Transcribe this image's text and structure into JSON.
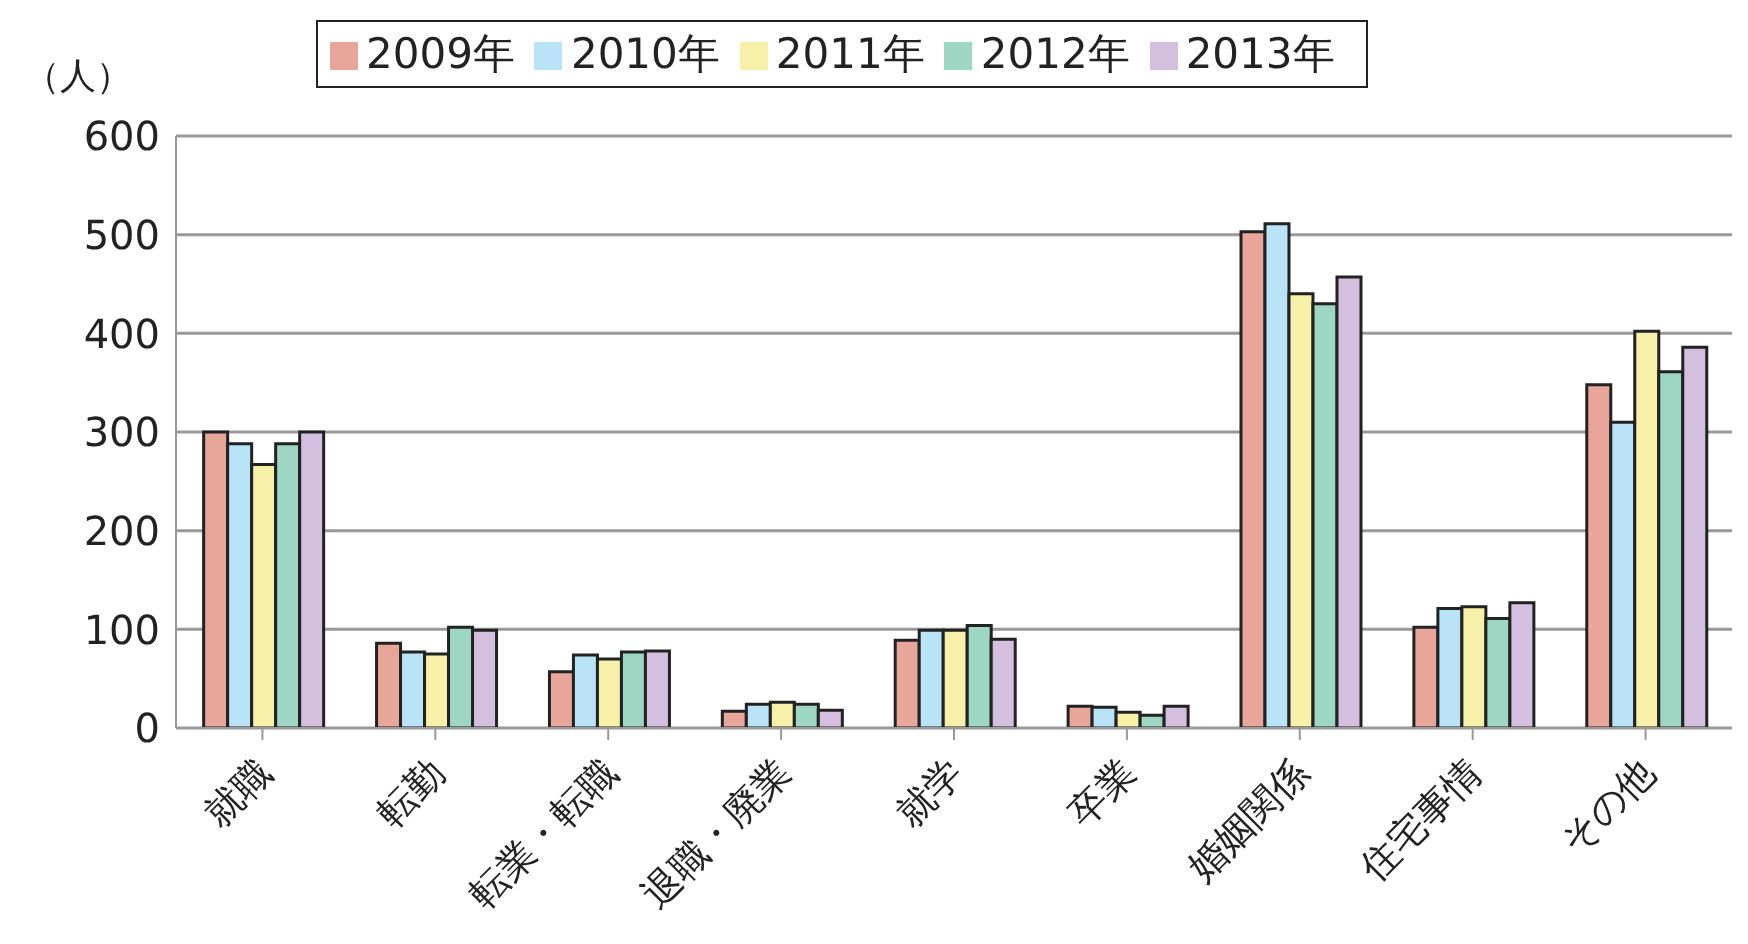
{
  "chart_data": {
    "type": "bar",
    "ylabel": "（人）",
    "categories": [
      "就職",
      "転勤",
      "転業・転職",
      "退職・廃業",
      "就学",
      "卒業",
      "婚姻関係",
      "住宅事情",
      "その他"
    ],
    "series": [
      {
        "name": "2009年",
        "color": "#e8a59a",
        "values": [
          300,
          86,
          57,
          17,
          89,
          22,
          503,
          102,
          348
        ]
      },
      {
        "name": "2010年",
        "color": "#b9e3f7",
        "values": [
          288,
          77,
          74,
          24,
          99,
          21,
          511,
          121,
          310
        ]
      },
      {
        "name": "2011年",
        "color": "#f7f0a8",
        "values": [
          267,
          75,
          70,
          26,
          99,
          16,
          440,
          123,
          402
        ]
      },
      {
        "name": "2012年",
        "color": "#9dd6c2",
        "values": [
          288,
          102,
          77,
          24,
          104,
          13,
          430,
          111,
          361
        ]
      },
      {
        "name": "2013年",
        "color": "#d4c0de",
        "values": [
          300,
          99,
          78,
          18,
          90,
          22,
          457,
          127,
          386
        ]
      }
    ],
    "ylim": [
      0,
      600
    ],
    "yticks": [
      0,
      100,
      200,
      300,
      400,
      500,
      600
    ],
    "grid": "y",
    "legend": "top"
  }
}
